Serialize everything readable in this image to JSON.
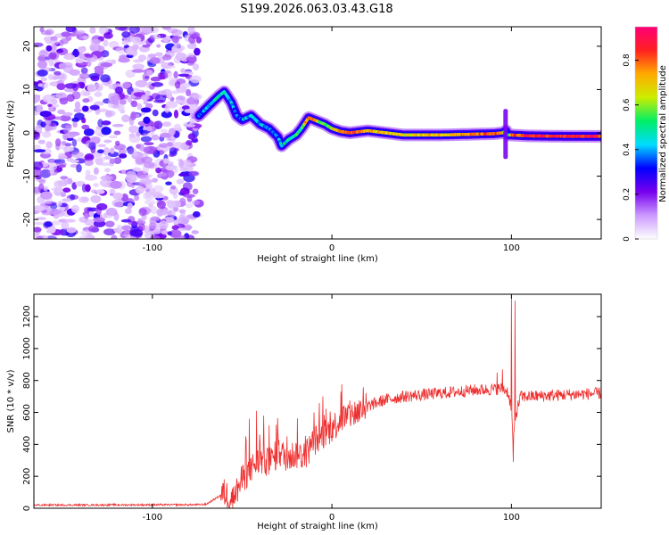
{
  "figure_title": "S199.2026.063.03.43.G18",
  "chart_data": [
    {
      "type": "heatmap",
      "title": "S199.2026.063.03.43.G18",
      "xlabel": "Height of straight line (km)",
      "ylabel": "Frequency (Hz)",
      "xlim": [
        -166,
        150
      ],
      "ylim": [
        -24.5,
        24.5
      ],
      "xticks": [
        -100,
        0,
        100
      ],
      "yticks": [
        -20,
        -10,
        0,
        10,
        20
      ],
      "colorbar": {
        "label": "Normalized spectral amplitude",
        "range": [
          0,
          0.95
        ],
        "ticks": [
          0,
          0.2,
          0.4,
          0.6,
          0.8
        ],
        "stops": [
          "#ffffff",
          "#cc99ff",
          "#7700ee",
          "#0000ff",
          "#00ddff",
          "#00ee66",
          "#ccee00",
          "#ffaa00",
          "#ff2020",
          "#ff0077"
        ]
      },
      "noise_region": {
        "x_from": -166,
        "x_to": -74,
        "y_from": -24.5,
        "y_to": 24.5
      },
      "trace": {
        "x": [
          -74,
          -68,
          -63,
          -60,
          -56,
          -53,
          -50,
          -45,
          -40,
          -35,
          -30,
          -28,
          -24,
          -20,
          -17,
          -13,
          -10,
          -7,
          -4,
          0,
          5,
          10,
          20,
          40,
          60,
          80,
          90,
          95,
          97,
          98,
          100,
          110,
          130,
          150
        ],
        "y": [
          4,
          6.5,
          8.5,
          9.5,
          7,
          4,
          3,
          4,
          2,
          1,
          -1,
          -3,
          -1.5,
          -0.5,
          1,
          3.5,
          3,
          2.5,
          2,
          1,
          0.3,
          0,
          0.5,
          -0.5,
          -0.5,
          -0.3,
          -0.2,
          0,
          0.5,
          -0.5,
          -0.5,
          -0.7,
          -0.8,
          -0.8
        ],
        "level": [
          0.35,
          0.45,
          0.5,
          0.5,
          0.4,
          0.35,
          0.4,
          0.45,
          0.45,
          0.4,
          0.4,
          0.45,
          0.5,
          0.55,
          0.55,
          0.9,
          0.85,
          0.6,
          0.6,
          0.65,
          0.85,
          0.9,
          0.75,
          0.7,
          0.75,
          0.8,
          0.85,
          0.75,
          0.35,
          0.35,
          0.85,
          0.9,
          0.9,
          0.9
        ]
      }
    },
    {
      "type": "line",
      "xlabel": "Height of straight line (km)",
      "ylabel": "SNR (10 * v/v)",
      "xlim": [
        -166,
        150
      ],
      "ylim": [
        0,
        1340
      ],
      "xticks": [
        -100,
        0,
        100
      ],
      "yticks": [
        0,
        200,
        400,
        600,
        800,
        1000,
        1200
      ],
      "line_color": "#ee3030",
      "trend": {
        "x": [
          -166,
          -75,
          -70,
          -60,
          -55,
          -50,
          -45,
          -40,
          -35,
          -30,
          -25,
          -20,
          -15,
          -10,
          -5,
          0,
          5,
          10,
          15,
          20,
          25,
          30,
          40,
          60,
          80,
          90,
          95,
          98,
          100,
          101,
          102,
          105,
          110,
          130,
          150
        ],
        "y": [
          20,
          22,
          25,
          95,
          60,
          180,
          250,
          300,
          280,
          350,
          320,
          340,
          330,
          420,
          460,
          500,
          560,
          580,
          610,
          640,
          660,
          680,
          700,
          720,
          740,
          745,
          750,
          730,
          620,
          400,
          560,
          700,
          700,
          710,
          720
        ]
      },
      "spikes": [
        {
          "x": -48,
          "y": 450
        },
        {
          "x": -46,
          "y": 560
        },
        {
          "x": -42,
          "y": 610
        },
        {
          "x": -38,
          "y": 580
        },
        {
          "x": -35,
          "y": 520
        },
        {
          "x": -30,
          "y": 470
        },
        {
          "x": -25,
          "y": 450
        },
        {
          "x": -10,
          "y": 600
        },
        {
          "x": -5,
          "y": 700
        },
        {
          "x": 5,
          "y": 730
        },
        {
          "x": 92,
          "y": 850
        },
        {
          "x": 95,
          "y": 870
        },
        {
          "x": 100,
          "y": 1340
        },
        {
          "x": 102,
          "y": 1300
        },
        {
          "x": 101,
          "y": 290
        }
      ]
    }
  ]
}
